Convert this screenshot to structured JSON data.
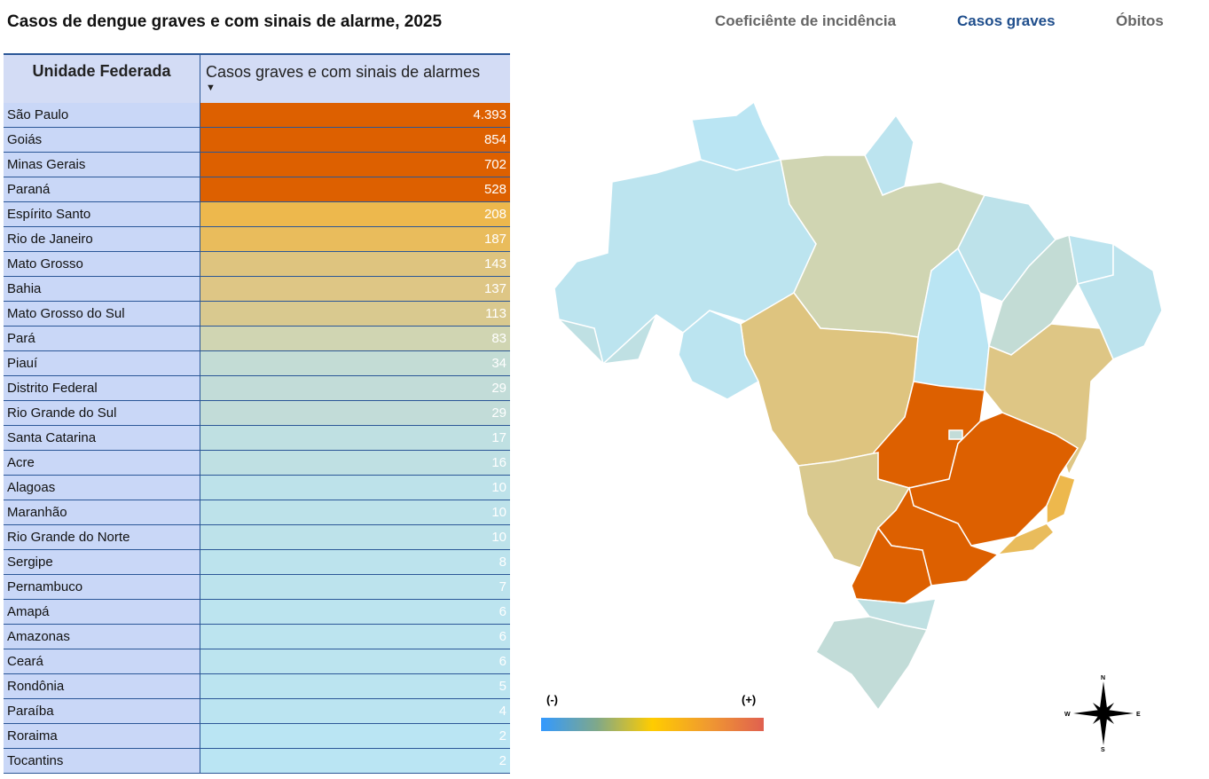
{
  "title": "Casos de dengue graves e com sinais de alarme, 2025",
  "tabs": [
    {
      "label": "Coeficiênte de incidência"
    },
    {
      "label": "Casos graves",
      "active": true
    },
    {
      "label": "Óbitos"
    }
  ],
  "table": {
    "headers": [
      "Unidade Federada",
      "Casos graves e com sinais de alarmes"
    ],
    "sort": "descending",
    "rows": [
      [
        "São Paulo",
        "4.393",
        "#dd6000"
      ],
      [
        "Goiás",
        "854",
        "#dd6000"
      ],
      [
        "Minas Gerais",
        "702",
        "#dd6000"
      ],
      [
        "Paraná",
        "528",
        "#dd6000"
      ],
      [
        "Espírito Santo",
        "208",
        "#edb84d"
      ],
      [
        "Rio de Janeiro",
        "187",
        "#e9bc5c"
      ],
      [
        "Mato Grosso",
        "143",
        "#dec47f"
      ],
      [
        "Bahia",
        "137",
        "#dec685"
      ],
      [
        "Mato Grosso do Sul",
        "113",
        "#d9c98f"
      ],
      [
        "Pará",
        "83",
        "#d0d5b2"
      ],
      [
        "Piauí",
        "34",
        "#c3dcd5"
      ],
      [
        "Distrito Federal",
        "29",
        "#c2dcd8"
      ],
      [
        "Rio Grande do Sul",
        "29",
        "#c2dcd8"
      ],
      [
        "Santa Catarina",
        "17",
        "#bfe0e2"
      ],
      [
        "Acre",
        "16",
        "#bfe0e3"
      ],
      [
        "Alagoas",
        "10",
        "#bde2ea"
      ],
      [
        "Maranhão",
        "10",
        "#bde2ea"
      ],
      [
        "Rio Grande do Norte",
        "10",
        "#bde2ea"
      ],
      [
        "Sergipe",
        "8",
        "#bce3ed"
      ],
      [
        "Pernambuco",
        "7",
        "#bce3ed"
      ],
      [
        "Amapá",
        "6",
        "#bce4ef"
      ],
      [
        "Amazonas",
        "6",
        "#bce4ef"
      ],
      [
        "Ceará",
        "6",
        "#bce4ef"
      ],
      [
        "Rondônia",
        "5",
        "#bbe4f0"
      ],
      [
        "Paraíba",
        "4",
        "#bbe4f1"
      ],
      [
        "Roraima",
        "2",
        "#bae5f3"
      ],
      [
        "Tocantins",
        "2",
        "#bae5f3"
      ]
    ]
  },
  "legend": {
    "min": "(-)",
    "max": "(+)",
    "colors": [
      "#3399ff",
      "#ffcc00",
      "#e06050"
    ]
  },
  "compass": {
    "n": "N",
    "s": "S",
    "e": "E",
    "w": "W"
  }
}
